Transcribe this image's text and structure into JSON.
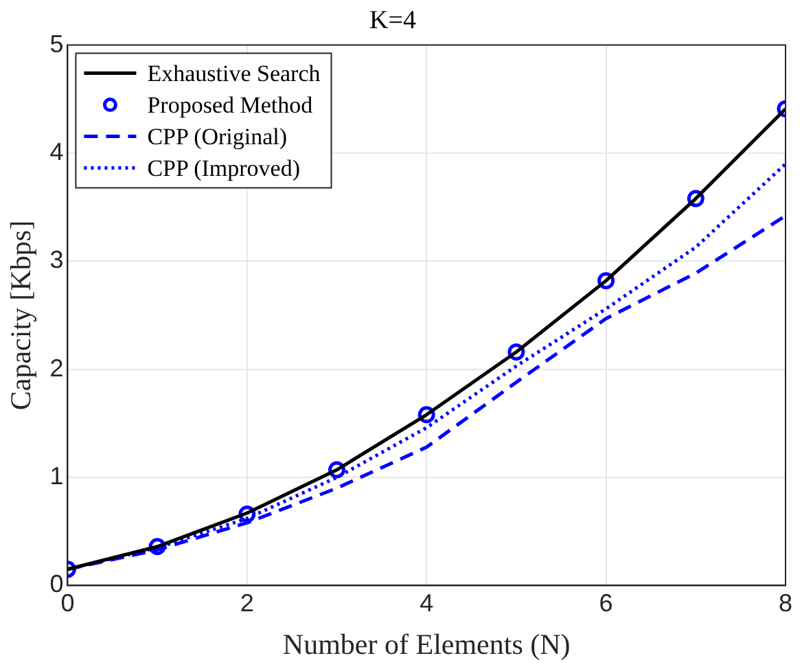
{
  "chart_data": {
    "type": "line",
    "title": "K=4",
    "xlabel": "Number of Elements (N)",
    "ylabel": "Capacity [Kbps]",
    "x": [
      0,
      1,
      2,
      3,
      4,
      5,
      6,
      7,
      8
    ],
    "xlim": [
      0,
      8
    ],
    "xticks": [
      0,
      2,
      4,
      6,
      8
    ],
    "ylim": [
      0,
      5
    ],
    "yticks": [
      0,
      1,
      2,
      3,
      4,
      5
    ],
    "grid": true,
    "legend": "top left",
    "series": [
      {
        "name": "Exhaustive Search",
        "color": "#000000",
        "line_style": "solid",
        "marker": "none",
        "values": [
          0.15,
          0.36,
          0.67,
          1.07,
          1.58,
          2.16,
          2.82,
          3.58,
          4.41
        ]
      },
      {
        "name": "Proposed Method",
        "type": "scatter",
        "color": "#0000ff",
        "marker": "circle",
        "values": [
          0.15,
          0.36,
          0.66,
          1.07,
          1.58,
          2.16,
          2.82,
          3.58,
          4.41
        ]
      },
      {
        "name": "CPP (Original)",
        "color": "#0000ff",
        "line_style": "dashed",
        "marker": "none",
        "values": [
          0.15,
          0.33,
          0.58,
          0.9,
          1.28,
          1.88,
          2.47,
          2.89,
          3.42
        ]
      },
      {
        "name": "CPP (Improved)",
        "color": "#0000ff",
        "line_style": "dotted",
        "marker": "none",
        "values": [
          0.15,
          0.35,
          0.62,
          1.0,
          1.46,
          2.03,
          2.56,
          3.13,
          3.9
        ]
      }
    ]
  }
}
